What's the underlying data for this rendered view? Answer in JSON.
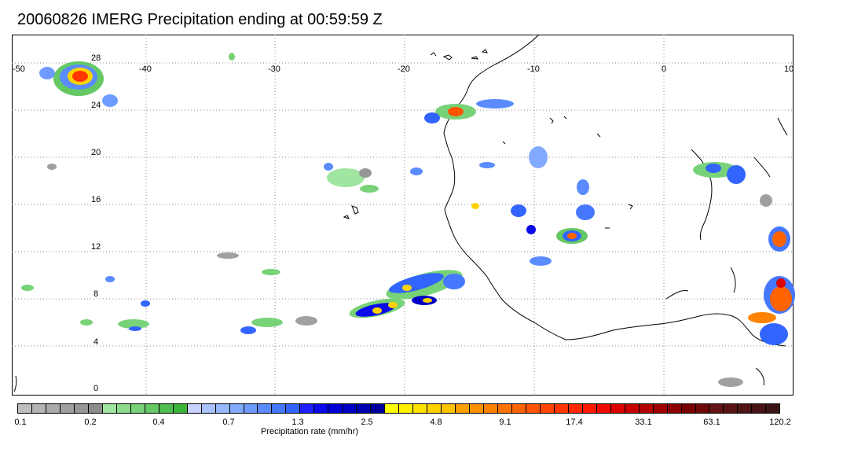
{
  "title": "20060826 IMERG Precipitation ending at 00:59:59 Z",
  "map": {
    "lon_labels": [
      "-50",
      "-40",
      "-30",
      "-20",
      "-10",
      "0",
      "10"
    ],
    "lat_labels": [
      "28",
      "24",
      "20",
      "16",
      "12",
      "8",
      "4",
      "0"
    ],
    "coastline_color": "#000000",
    "grid_style": "dotted"
  },
  "colorbar": {
    "label": "Precipitation rate (mm/hr)",
    "tick_labels": [
      "0.1",
      "0.2",
      "0.4",
      "0.7",
      "1.3",
      "2.5",
      "4.8",
      "9.1",
      "17.4",
      "33.1",
      "63.1",
      "120.2"
    ],
    "colors": [
      "#bebebe",
      "#b4b4b4",
      "#aaaaaa",
      "#a0a0a0",
      "#969696",
      "#8c8c8c",
      "#a0e6a0",
      "#8cdc8c",
      "#78d278",
      "#64c864",
      "#50be50",
      "#3cb43c",
      "#c8d2ff",
      "#aac3ff",
      "#96b9ff",
      "#82aaff",
      "#6e9bff",
      "#5a8cff",
      "#4678ff",
      "#3264ff",
      "#1e1eff",
      "#0a0aeb",
      "#0000d7",
      "#0000c3",
      "#0000af",
      "#00009b",
      "#ffff00",
      "#fff000",
      "#ffe100",
      "#ffd200",
      "#ffc300",
      "#ffa000",
      "#ff9100",
      "#ff8200",
      "#ff7300",
      "#ff6400",
      "#ff5500",
      "#ff4600",
      "#ff3700",
      "#ff2800",
      "#ff1900",
      "#f00a00",
      "#dc0000",
      "#c80000",
      "#b40000",
      "#a00000",
      "#8c0000",
      "#780000",
      "#6e0a0a",
      "#641414",
      "#5a1414",
      "#501414",
      "#461414",
      "#3c1414"
    ]
  }
}
